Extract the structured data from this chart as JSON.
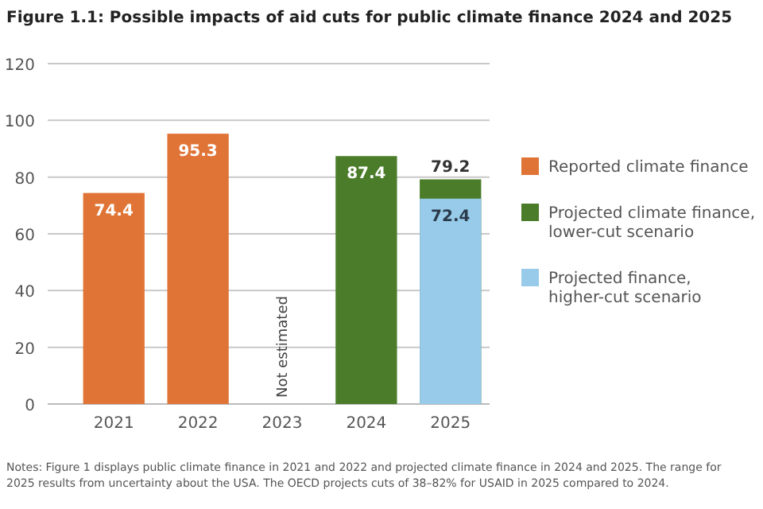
{
  "chart_data": {
    "type": "bar",
    "title": "Figure 1.1: Possible impacts of aid cuts for public climate finance 2024 and 2025",
    "categories": [
      "2021",
      "2022",
      "2023",
      "2024",
      "2025"
    ],
    "series": [
      {
        "name": "Reported climate finance",
        "color": "#e07436",
        "values": [
          74.4,
          95.3,
          null,
          null,
          null
        ]
      },
      {
        "name": "Projected climate finance, lower-cut scenario",
        "color": "#4a7c2a",
        "values": [
          null,
          null,
          null,
          87.4,
          79.2
        ]
      },
      {
        "name": "Projected finance, higher-cut scenario",
        "color": "#97cbe9",
        "values": [
          null,
          null,
          null,
          null,
          72.4
        ]
      }
    ],
    "ylim": [
      0,
      120
    ],
    "yticks": [
      0,
      20,
      40,
      60,
      80,
      100,
      120
    ],
    "grid": "y",
    "legend": "right",
    "data_labels": true,
    "annotations": [
      "Not estimated",
      "Notes: Figure 1 displays public climate finance in 2021 and 2022 and projected climate finance in 2024 and 2025. The range for 2025 results from uncertainty about the USA. The OECD projects cuts of 38–82% for USAID in 2025 compared to 2024."
    ]
  }
}
